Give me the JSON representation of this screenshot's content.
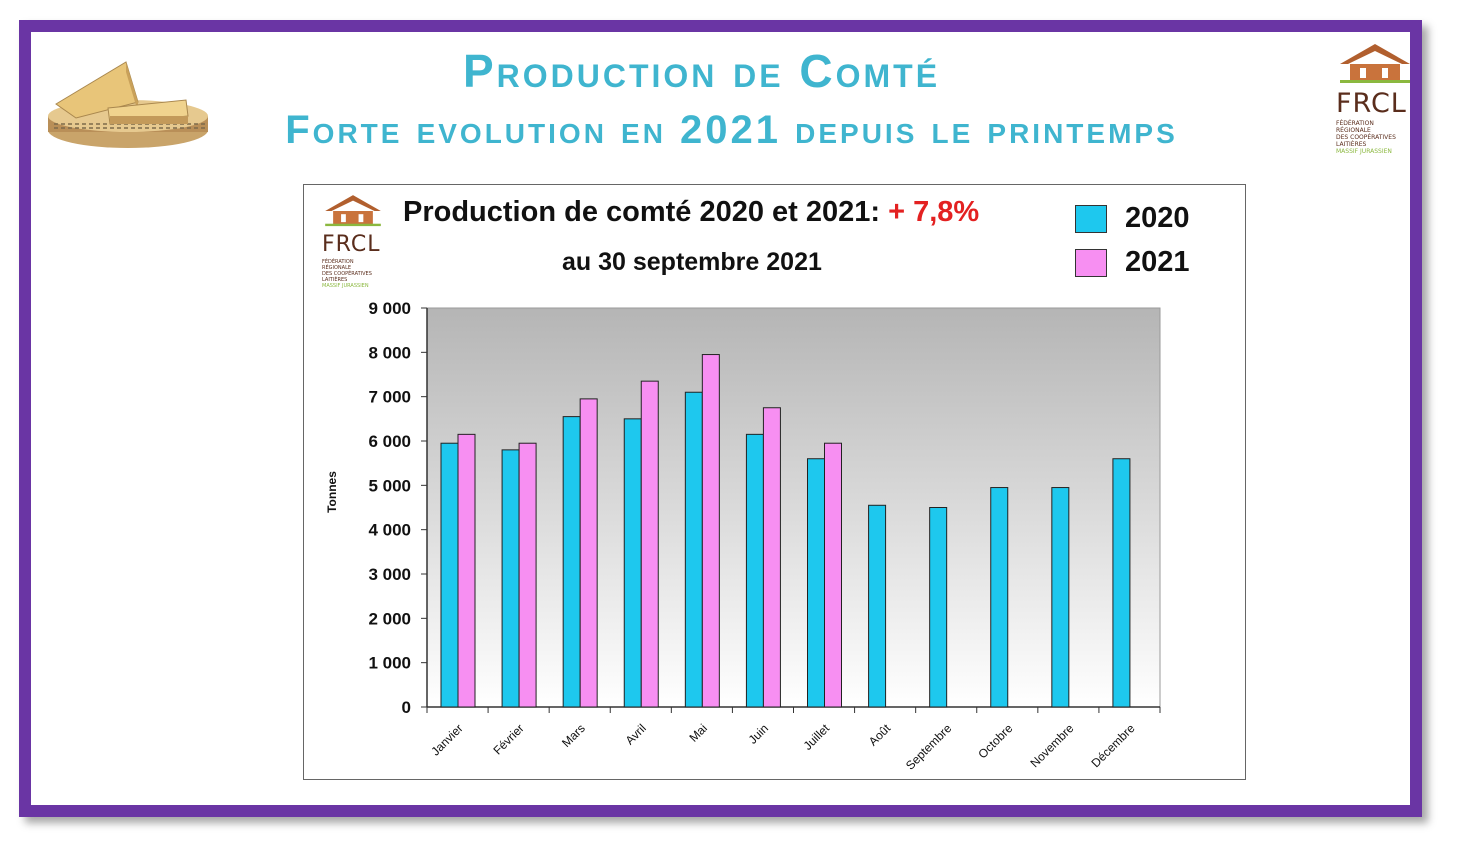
{
  "header": {
    "title_line1": "Production  de Comté",
    "title_line2": "Forte evolution en 2021 depuis le printemps",
    "title_color": "#3fb5cf",
    "frame_color": "#6a35a4"
  },
  "logo": {
    "name": "FRCL",
    "lines": [
      "FÉDÉRATION",
      "RÉGIONALE",
      "DES COOPÉRATIVES",
      "LAITIÈRES",
      "MASSIF JURASSIEN"
    ]
  },
  "chart_data": {
    "type": "bar",
    "title": "Production de comté 2020 et 2021:",
    "title_highlight": "+ 7,8%",
    "subtitle": "au 30 septembre 2021",
    "ylabel": "Tonnes",
    "ylim": [
      0,
      9000
    ],
    "yticks": [
      {
        "value": 0,
        "label": "0"
      },
      {
        "value": 1000,
        "label": "1 000"
      },
      {
        "value": 2000,
        "label": "2 000"
      },
      {
        "value": 3000,
        "label": "3 000"
      },
      {
        "value": 4000,
        "label": "4 000"
      },
      {
        "value": 5000,
        "label": "5 000"
      },
      {
        "value": 6000,
        "label": "6 000"
      },
      {
        "value": 7000,
        "label": "7 000"
      },
      {
        "value": 8000,
        "label": "8 000"
      },
      {
        "value": 9000,
        "label": "9 000"
      }
    ],
    "categories": [
      "Janvier",
      "Février",
      "Mars",
      "Avril",
      "Mai",
      "Juin",
      "Juillet",
      "Août",
      "Septembre",
      "Octobre",
      "Novembre",
      "Décembre"
    ],
    "series": [
      {
        "name": "2020",
        "color": "#1ec8ee",
        "values": [
          5950,
          5800,
          6550,
          6500,
          7100,
          6150,
          5600,
          4550,
          4500,
          4950,
          4950,
          5600
        ]
      },
      {
        "name": "2021",
        "color": "#f78ff2",
        "values": [
          6150,
          5950,
          6950,
          7350,
          7950,
          6750,
          5950,
          null,
          null,
          null,
          null,
          null
        ]
      }
    ],
    "grid": false,
    "legend": "top-right"
  }
}
